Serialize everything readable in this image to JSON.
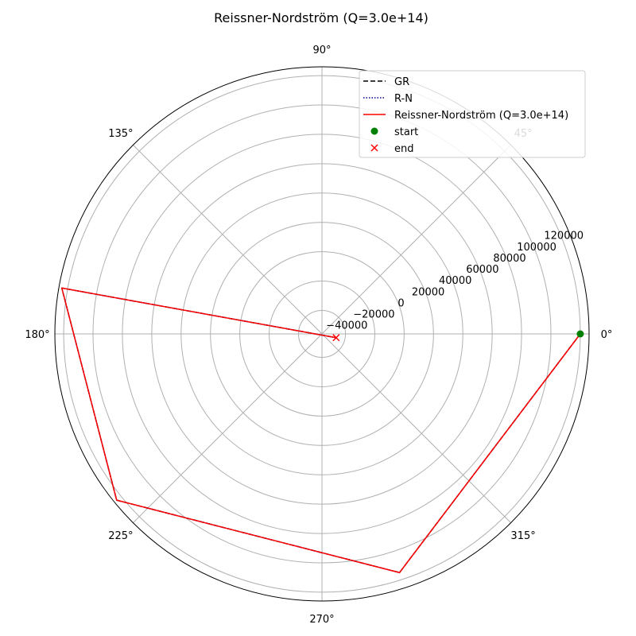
{
  "chart_data": {
    "type": "line",
    "projection": "polar",
    "title": "Reissner-Nordström (Q=3.0e+14)",
    "angle_unit": "degrees",
    "r_range": [
      -56000,
      126000
    ],
    "grid": true,
    "legend_placement": "upper-right",
    "angle_tick_labels": [
      "0°",
      "45°",
      "90°",
      "135°",
      "180°",
      "225°",
      "270°",
      "315°"
    ],
    "r_tick_values": [
      -40000,
      -20000,
      0,
      20000,
      40000,
      60000,
      80000,
      100000,
      120000
    ],
    "r_tick_labels": [
      "−40000",
      "−20000",
      "0",
      "20000",
      "40000",
      "60000",
      "80000",
      "100000",
      "120000"
    ],
    "series": [
      {
        "name": "GR",
        "style": "dashed",
        "color": "#000000",
        "theta_deg": [
          0,
          288,
          219,
          170,
          345
        ],
        "r": [
          120000,
          115000,
          124000,
          124000,
          -46000
        ]
      },
      {
        "name": "R-N",
        "style": "dotted",
        "color": "#00008b",
        "theta_deg": [
          0,
          288,
          219,
          170,
          345
        ],
        "r": [
          120000,
          115000,
          124000,
          124000,
          -46000
        ]
      },
      {
        "name": "Reissner-Nordström (Q=3.0e+14)",
        "style": "solid",
        "color": "#ff0000",
        "theta_deg": [
          0,
          288,
          219,
          170,
          345
        ],
        "r": [
          120000,
          115000,
          124000,
          124000,
          -46000
        ]
      }
    ],
    "markers": [
      {
        "name": "start",
        "symbol": "circle",
        "color": "#008000",
        "theta_deg": 0,
        "r": 120000
      },
      {
        "name": "end",
        "symbol": "x",
        "color": "#ff0000",
        "theta_deg": 345,
        "r": -46000
      }
    ]
  }
}
